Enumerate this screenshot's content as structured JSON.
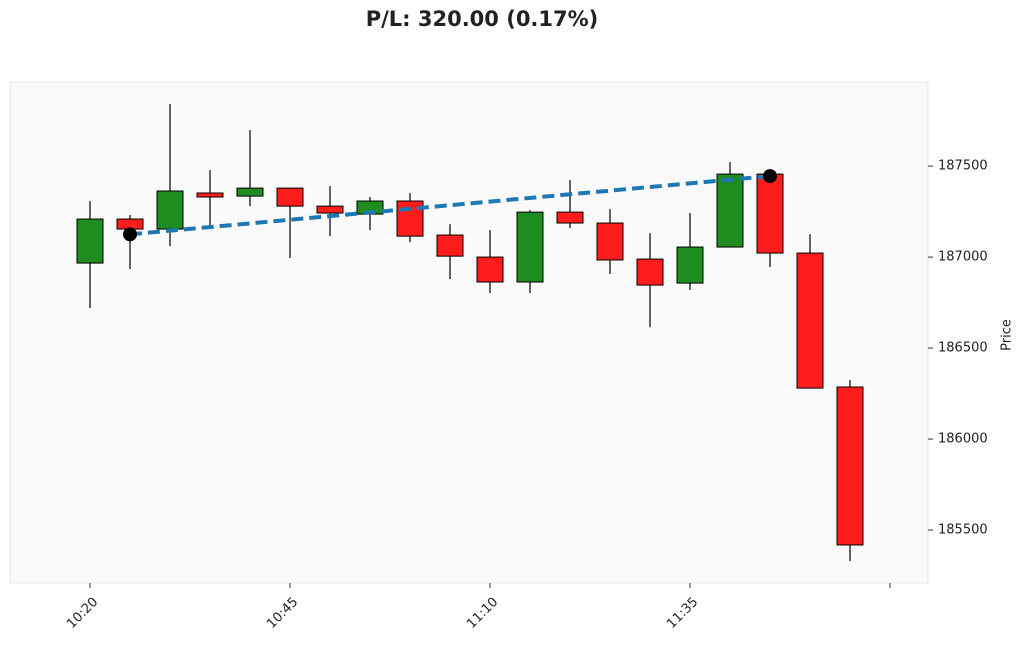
{
  "chart_data": {
    "type": "candlestick",
    "title": "P/L: 320.00 (0.17%)",
    "y_label": "Price",
    "categories": [
      "10:20",
      null,
      null,
      null,
      null,
      "10:45",
      null,
      null,
      null,
      null,
      "11:10",
      null,
      null,
      null,
      null,
      "11:35",
      null,
      null,
      null,
      null
    ],
    "open": [
      186967,
      187209,
      187154,
      187352,
      187335,
      187379,
      187280,
      187236,
      187308,
      187121,
      187000,
      186863,
      187247,
      187187,
      186989,
      186857,
      187055,
      187456,
      187022,
      186286
    ],
    "high": [
      187308,
      187231,
      187841,
      187478,
      187698,
      187379,
      187390,
      187330,
      187352,
      187181,
      187148,
      187258,
      187423,
      187264,
      187132,
      187242,
      187522,
      187467,
      187126,
      186324
    ],
    "low": [
      186720,
      186934,
      187060,
      187165,
      187280,
      186995,
      187115,
      187148,
      187082,
      186879,
      186802,
      186802,
      187159,
      186907,
      186615,
      186819,
      187055,
      186945,
      186280,
      185330
    ],
    "close": [
      187209,
      187154,
      187363,
      187330,
      187379,
      187280,
      187242,
      187308,
      187115,
      187005,
      186863,
      187247,
      187187,
      186984,
      186846,
      187055,
      187456,
      187022,
      186280,
      185418
    ],
    "up_color": "#1e8c1e",
    "down_color": "#ff1c1c",
    "trade": {
      "entry": 187125,
      "exit": 187445,
      "color": "#1f77b4"
    },
    "ylim": [
      185209,
      187962
    ],
    "yticks": [
      185500,
      186000,
      186500,
      187000,
      187500
    ],
    "grid": false
  }
}
